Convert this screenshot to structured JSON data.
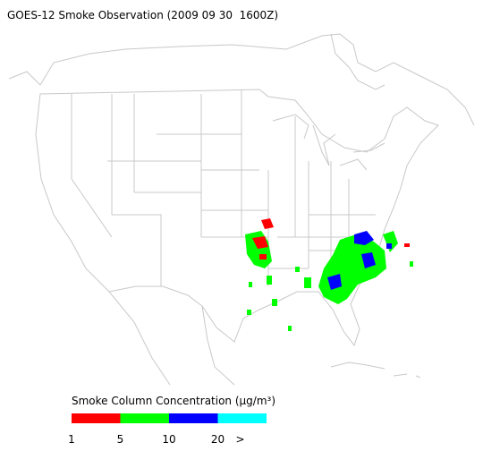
{
  "title": "GOES-12 Smoke Observation (2009 09 30  1600Z)",
  "legend": {
    "title": "Smoke Column Concentration (μg/m³)",
    "colors": [
      "#ff0000",
      "#00ff00",
      "#0000ff",
      "#00ffff"
    ],
    "ticks": [
      "1",
      "5",
      "10",
      "20",
      ">"
    ]
  }
}
